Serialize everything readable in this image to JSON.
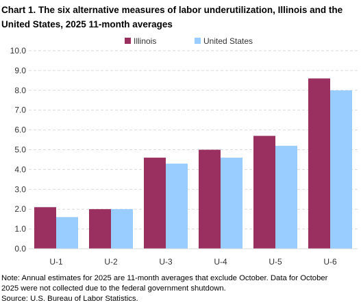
{
  "chart_data": {
    "type": "bar",
    "title": "Chart 1. The six alternative measures of labor underutilization, Illinois and the United States, 2025 11-month averages",
    "categories": [
      "U-1",
      "U-2",
      "U-3",
      "U-4",
      "U-5",
      "U-6"
    ],
    "series": [
      {
        "name": "Illinois",
        "values": [
          2.1,
          2.0,
          4.6,
          5.0,
          5.7,
          8.6
        ],
        "color": "#99305f"
      },
      {
        "name": "United States",
        "values": [
          1.6,
          2.0,
          4.3,
          4.6,
          5.2,
          8.0
        ],
        "color": "#99ccff"
      }
    ],
    "ylim": [
      0,
      10
    ],
    "yticks": [
      "0.0",
      "1.0",
      "2.0",
      "3.0",
      "4.0",
      "5.0",
      "6.0",
      "7.0",
      "8.0",
      "9.0",
      "10.0"
    ],
    "xlabel": "",
    "ylabel": "",
    "grid": true,
    "legend_position": "top-center"
  },
  "notes": {
    "line1": "Note: Annual estimates for 2025 are 11-month averages that exclude October. Data for October",
    "line2": "2025 were not collected due to the federal government shutdown.",
    "source": "Source: U.S. Bureau of Labor Statistics."
  }
}
